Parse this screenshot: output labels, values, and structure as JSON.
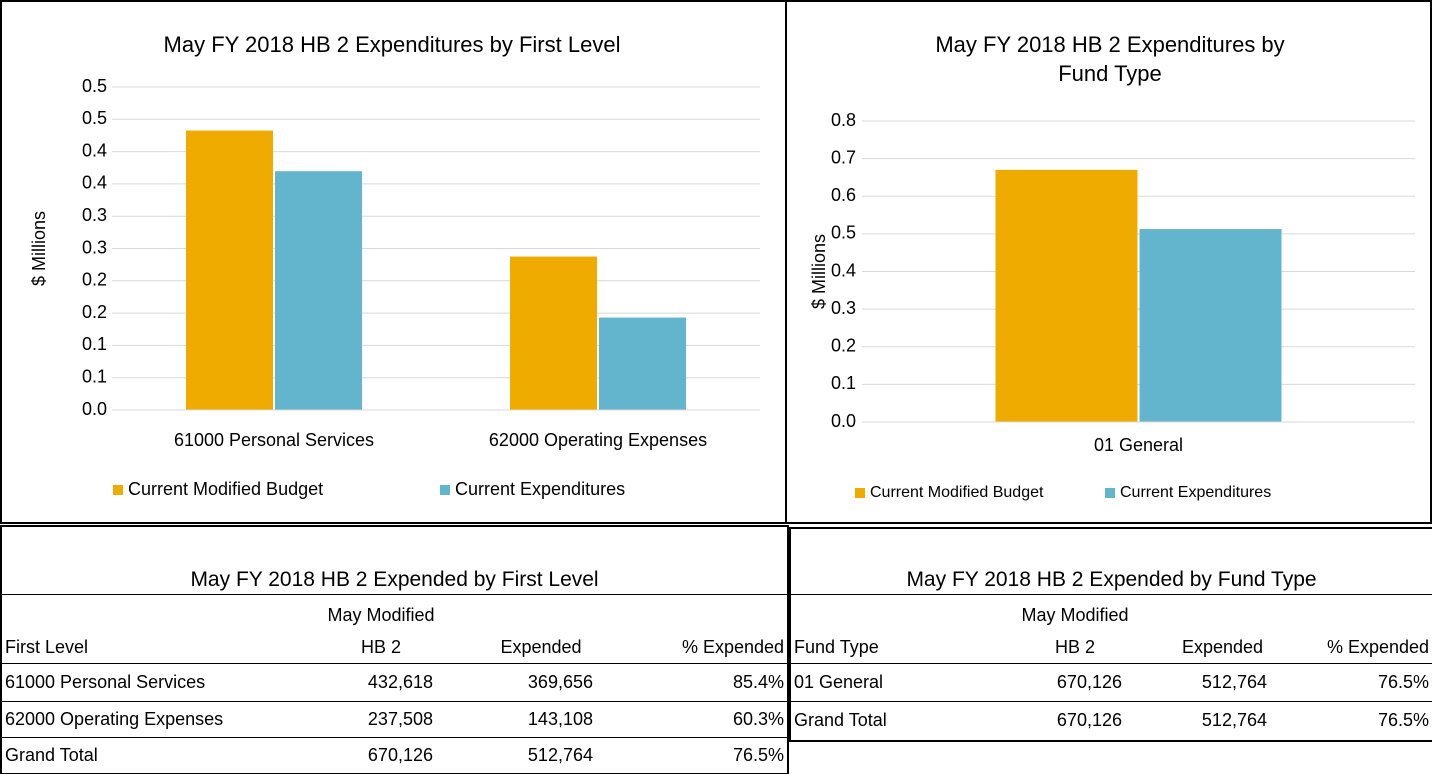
{
  "chart_data": [
    {
      "type": "bar",
      "title": "May FY 2018 HB 2 Expenditures  by First Level",
      "y_label": "$ Millions",
      "categories": [
        "61000 Personal Services",
        "62000 Operating Expenses"
      ],
      "series": [
        {
          "name": "Current Modified Budget",
          "color": "#f0ab00",
          "values": [
            0.432618,
            0.237508
          ]
        },
        {
          "name": "Current Expenditures",
          "color": "#62b5cc",
          "values": [
            0.369656,
            0.143108
          ]
        }
      ],
      "ylim": [
        0,
        0.5
      ],
      "yticks": [
        {
          "value": 0,
          "label": "0.0"
        },
        {
          "value": 0.05,
          "label": "0.1"
        },
        {
          "value": 0.1,
          "label": "0.1"
        },
        {
          "value": 0.15,
          "label": "0.2"
        },
        {
          "value": 0.2,
          "label": "0.2"
        },
        {
          "value": 0.25,
          "label": "0.3"
        },
        {
          "value": 0.3,
          "label": "0.3"
        },
        {
          "value": 0.35,
          "label": "0.4"
        },
        {
          "value": 0.4,
          "label": "0.4"
        },
        {
          "value": 0.45,
          "label": "0.5"
        },
        {
          "value": 0.5,
          "label": "0.5"
        }
      ],
      "grid": true,
      "legend": "bottom"
    },
    {
      "type": "bar",
      "title": "May FY 2018 HB 2 Expenditures  by Fund Type",
      "y_label": "$ Millions",
      "categories": [
        "01 General"
      ],
      "series": [
        {
          "name": "Current Modified Budget",
          "color": "#f0ab00",
          "values": [
            0.670126
          ]
        },
        {
          "name": "Current Expenditures",
          "color": "#62b5cc",
          "values": [
            0.512764
          ]
        }
      ],
      "ylim": [
        0,
        0.8
      ],
      "yticks": [
        {
          "value": 0,
          "label": "0.0"
        },
        0.1,
        0.2,
        0.3,
        0.4,
        0.5,
        0.6,
        0.7,
        0.8
      ],
      "grid": true,
      "legend": "bottom"
    }
  ],
  "tables": [
    {
      "title": "May FY 2018 HB 2 Expended by First Level",
      "columns": [
        [
          "First Level"
        ],
        [
          "May Modified",
          "HB 2"
        ],
        [
          "Expended"
        ],
        [
          "% Expended"
        ]
      ],
      "rows": [
        [
          "61000 Personal Services",
          "432,618",
          "369,656",
          "85.4%"
        ],
        [
          "62000 Operating Expenses",
          "237,508",
          "143,108",
          "60.3%"
        ],
        [
          "Grand Total",
          "670,126",
          "512,764",
          "76.5%"
        ]
      ]
    },
    {
      "title": "May FY 2018 HB 2 Expended by Fund Type",
      "columns": [
        [
          "Fund Type"
        ],
        [
          "May Modified",
          "HB 2"
        ],
        [
          "Expended"
        ],
        [
          "% Expended"
        ]
      ],
      "rows": [
        [
          "01 General",
          "670,126",
          "512,764",
          "76.5%"
        ],
        [
          "Grand Total",
          "670,126",
          "512,764",
          "76.5%"
        ]
      ]
    }
  ]
}
